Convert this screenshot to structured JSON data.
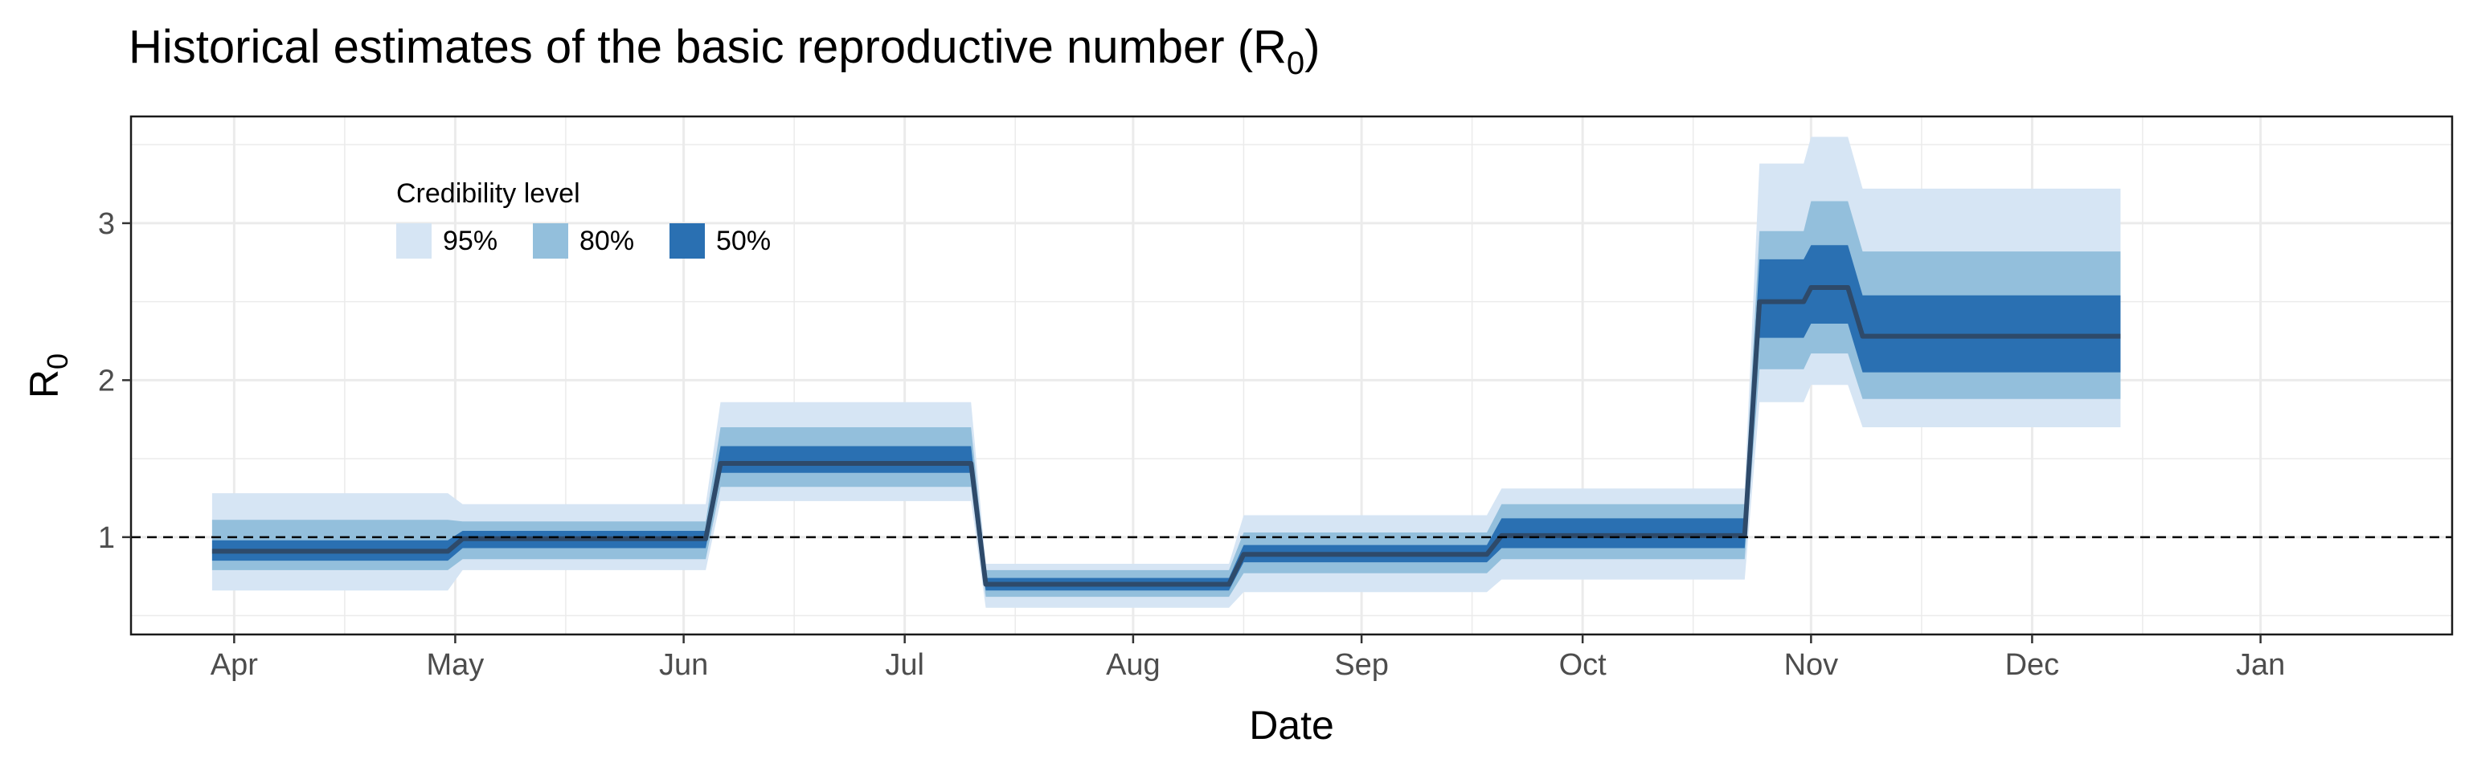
{
  "chart_data": {
    "type": "area",
    "title": "Historical estimates of the basic reproductive number (R",
    "title_subscript": "0",
    "title_suffix": ")",
    "xlabel": "Date",
    "ylabel": "R",
    "ylabel_subscript": "0",
    "x_ticks": [
      {
        "date": "2020-04-01",
        "label": "Apr"
      },
      {
        "date": "2020-05-01",
        "label": "May"
      },
      {
        "date": "2020-06-01",
        "label": "Jun"
      },
      {
        "date": "2020-07-01",
        "label": "Jul"
      },
      {
        "date": "2020-08-01",
        "label": "Aug"
      },
      {
        "date": "2020-09-01",
        "label": "Sep"
      },
      {
        "date": "2020-10-01",
        "label": "Oct"
      },
      {
        "date": "2020-11-01",
        "label": "Nov"
      },
      {
        "date": "2020-12-01",
        "label": "Dec"
      },
      {
        "date": "2021-01-01",
        "label": "Jan"
      }
    ],
    "y_ticks": [
      1,
      2,
      3
    ],
    "xlim": [
      "2020-03-18",
      "2021-01-27"
    ],
    "ylim": [
      0.38,
      3.68
    ],
    "grid": true,
    "reference_line": {
      "y": 1,
      "style": "dashed"
    },
    "legend": {
      "title": "Credibility level",
      "placement": "top-left",
      "entries": [
        {
          "label": "95%",
          "color": "#d6e5f4"
        },
        {
          "label": "80%",
          "color": "#93bfdc"
        },
        {
          "label": "50%",
          "color": "#2a70b2"
        }
      ]
    },
    "median_color": "#2e4a6a",
    "segments": [
      {
        "start": "2020-03-29",
        "end": "2020-04-30",
        "median": 0.91,
        "ci50": [
          0.85,
          0.98
        ],
        "ci80": [
          0.79,
          1.11
        ],
        "ci95": [
          0.66,
          1.28
        ]
      },
      {
        "start": "2020-05-02",
        "end": "2020-06-04",
        "median": 0.99,
        "ci50": [
          0.93,
          1.04
        ],
        "ci80": [
          0.86,
          1.1
        ],
        "ci95": [
          0.79,
          1.21
        ]
      },
      {
        "start": "2020-06-06",
        "end": "2020-07-10",
        "median": 1.47,
        "ci50": [
          1.41,
          1.58
        ],
        "ci80": [
          1.32,
          1.7
        ],
        "ci95": [
          1.23,
          1.86
        ]
      },
      {
        "start": "2020-07-12",
        "end": "2020-08-14",
        "median": 0.7,
        "ci50": [
          0.66,
          0.74
        ],
        "ci80": [
          0.62,
          0.79
        ],
        "ci95": [
          0.55,
          0.83
        ]
      },
      {
        "start": "2020-08-16",
        "end": "2020-09-18",
        "median": 0.89,
        "ci50": [
          0.84,
          0.95
        ],
        "ci80": [
          0.77,
          1.03
        ],
        "ci95": [
          0.65,
          1.14
        ]
      },
      {
        "start": "2020-09-20",
        "end": "2020-10-23",
        "median": 1.01,
        "ci50": [
          0.93,
          1.12
        ],
        "ci80": [
          0.86,
          1.21
        ],
        "ci95": [
          0.73,
          1.31
        ]
      },
      {
        "start": "2020-10-25",
        "end": "2020-10-31",
        "median": 2.5,
        "ci50": [
          2.27,
          2.77
        ],
        "ci80": [
          2.07,
          2.95
        ],
        "ci95": [
          1.86,
          3.38
        ]
      },
      {
        "start": "2020-11-01",
        "end": "2020-11-06",
        "median": 2.59,
        "ci50": [
          2.36,
          2.86
        ],
        "ci80": [
          2.17,
          3.14
        ],
        "ci95": [
          1.97,
          3.55
        ]
      },
      {
        "start": "2020-11-08",
        "end": "2020-12-13",
        "median": 2.28,
        "ci50": [
          2.05,
          2.54
        ],
        "ci80": [
          1.88,
          2.82
        ],
        "ci95": [
          1.7,
          3.22
        ]
      }
    ]
  }
}
